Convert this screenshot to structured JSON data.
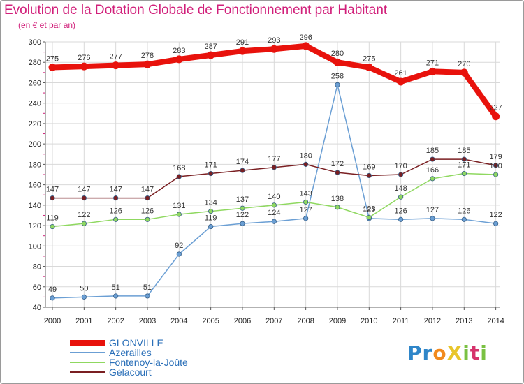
{
  "header": {
    "title": "Evolution de la Dotation Globale de Fonctionnement par Habitant",
    "subtitle": "(en € et par an)"
  },
  "logo": {
    "text": "ProXiti",
    "letters": [
      "P",
      "r",
      "o",
      "X",
      "i",
      "t",
      "i"
    ],
    "colors": [
      "#2f86c9",
      "#2f86c9",
      "#f28a1d",
      "#e8c52a",
      "#7ac142",
      "#d6336c",
      "#7ac142"
    ]
  },
  "chart_data": {
    "type": "line",
    "x": [
      "2000",
      "2001",
      "2002",
      "2003",
      "2004",
      "2005",
      "2006",
      "2007",
      "2008",
      "2009",
      "2010",
      "2011",
      "2012",
      "2013",
      "2014"
    ],
    "ylim": [
      40,
      300
    ],
    "yticks": [
      40,
      60,
      80,
      100,
      120,
      140,
      160,
      180,
      200,
      220,
      240,
      260,
      280,
      300
    ],
    "grid": true,
    "legend_position": "bottom-left",
    "series": [
      {
        "name": "GLONVILLE",
        "color": "#e8120c",
        "values": [
          275,
          276,
          277,
          278,
          283,
          287,
          291,
          293,
          296,
          280,
          275,
          261,
          271,
          270,
          227
        ]
      },
      {
        "name": "Azerailles",
        "color": "#6b9fd4",
        "values": [
          49,
          50,
          51,
          51,
          92,
          119,
          122,
          124,
          127,
          258,
          127,
          126,
          127,
          126,
          122
        ]
      },
      {
        "name": "Fontenoy-la-Joûte",
        "color": "#8fd860",
        "values": [
          119,
          122,
          126,
          126,
          131,
          134,
          137,
          140,
          143,
          138,
          128,
          148,
          166,
          171,
          170
        ]
      },
      {
        "name": "Gélacourt",
        "color": "#7a1f22",
        "values": [
          147,
          147,
          147,
          147,
          168,
          171,
          174,
          177,
          180,
          172,
          169,
          170,
          185,
          185,
          179
        ]
      }
    ]
  }
}
